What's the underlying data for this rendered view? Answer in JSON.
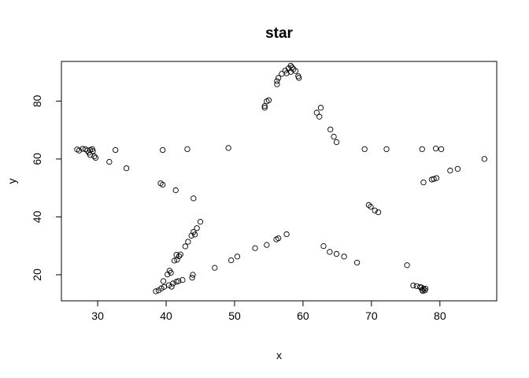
{
  "chart_data": {
    "type": "scatter",
    "title": "star",
    "xlabel": "x",
    "ylabel": "y",
    "xlim": [
      24.7,
      88.3
    ],
    "ylim": [
      11.0,
      93.7
    ],
    "xticks": [
      30,
      40,
      50,
      60,
      70,
      80
    ],
    "yticks": [
      20,
      40,
      60,
      80
    ],
    "grid": false,
    "marker": "open-circle",
    "colors": {
      "points": "#000000",
      "frame": "#000000",
      "background": "#ffffff"
    },
    "points": [
      [
        58.2,
        92.2
      ],
      [
        58.4,
        91.6
      ],
      [
        57.9,
        91.3
      ],
      [
        58.6,
        91.0
      ],
      [
        57.4,
        90.5
      ],
      [
        58.9,
        90.4
      ],
      [
        56.9,
        89.4
      ],
      [
        58.2,
        90.1
      ],
      [
        57.6,
        89.6
      ],
      [
        59.3,
        88.6
      ],
      [
        59.4,
        88.0
      ],
      [
        56.4,
        88.0
      ],
      [
        56.2,
        86.9
      ],
      [
        56.2,
        85.8
      ],
      [
        55.0,
        80.3
      ],
      [
        54.7,
        79.9
      ],
      [
        54.4,
        78.3
      ],
      [
        54.4,
        77.7
      ],
      [
        62.6,
        77.7
      ],
      [
        62.0,
        76.0
      ],
      [
        62.4,
        74.6
      ],
      [
        64.0,
        70.2
      ],
      [
        64.5,
        67.7
      ],
      [
        64.9,
        65.8
      ],
      [
        27.0,
        63.3
      ],
      [
        27.3,
        62.9
      ],
      [
        27.8,
        63.5
      ],
      [
        28.2,
        63.4
      ],
      [
        28.5,
        62.9
      ],
      [
        28.9,
        63.1
      ],
      [
        29.2,
        63.4
      ],
      [
        29.3,
        62.7
      ],
      [
        28.7,
        62.2
      ],
      [
        28.9,
        61.4
      ],
      [
        29.5,
        60.9
      ],
      [
        29.7,
        60.4
      ],
      [
        31.7,
        59.0
      ],
      [
        32.6,
        63.1
      ],
      [
        34.2,
        56.8
      ],
      [
        39.5,
        63.1
      ],
      [
        43.1,
        63.4
      ],
      [
        49.1,
        63.8
      ],
      [
        69.0,
        63.4
      ],
      [
        72.2,
        63.4
      ],
      [
        77.4,
        63.4
      ],
      [
        79.4,
        63.6
      ],
      [
        80.2,
        63.4
      ],
      [
        86.5,
        60.0
      ],
      [
        82.6,
        56.6
      ],
      [
        81.5,
        56.0
      ],
      [
        79.5,
        53.4
      ],
      [
        79.1,
        53.1
      ],
      [
        78.8,
        52.9
      ],
      [
        77.6,
        51.9
      ],
      [
        39.2,
        51.6
      ],
      [
        39.5,
        51.1
      ],
      [
        41.4,
        49.2
      ],
      [
        44.0,
        46.4
      ],
      [
        69.6,
        44.1
      ],
      [
        69.9,
        43.5
      ],
      [
        70.5,
        42.2
      ],
      [
        71.0,
        41.6
      ],
      [
        45.0,
        38.3
      ],
      [
        44.5,
        36.1
      ],
      [
        44.0,
        34.8
      ],
      [
        44.2,
        33.9
      ],
      [
        43.7,
        33.5
      ],
      [
        43.2,
        31.4
      ],
      [
        42.8,
        29.8
      ],
      [
        42.1,
        27.0
      ],
      [
        41.9,
        26.4
      ],
      [
        41.5,
        26.9
      ],
      [
        41.6,
        25.2
      ],
      [
        41.2,
        24.9
      ],
      [
        40.5,
        21.4
      ],
      [
        40.7,
        20.7
      ],
      [
        40.2,
        20.1
      ],
      [
        57.6,
        34.0
      ],
      [
        56.4,
        32.6
      ],
      [
        56.1,
        32.2
      ],
      [
        54.7,
        30.3
      ],
      [
        53.0,
        29.2
      ],
      [
        50.4,
        26.3
      ],
      [
        49.5,
        25.0
      ],
      [
        47.1,
        22.4
      ],
      [
        63.0,
        29.9
      ],
      [
        63.9,
        27.9
      ],
      [
        64.9,
        27.2
      ],
      [
        66.0,
        26.3
      ],
      [
        67.9,
        24.2
      ],
      [
        75.2,
        23.3
      ],
      [
        43.9,
        20.0
      ],
      [
        43.8,
        19.0
      ],
      [
        42.4,
        18.2
      ],
      [
        41.8,
        17.8
      ],
      [
        41.5,
        17.6
      ],
      [
        41.0,
        17.0
      ],
      [
        39.6,
        17.8
      ],
      [
        40.4,
        16.4
      ],
      [
        40.8,
        15.9
      ],
      [
        39.7,
        15.8
      ],
      [
        39.3,
        15.3
      ],
      [
        38.9,
        14.6
      ],
      [
        38.5,
        14.3
      ],
      [
        76.1,
        16.3
      ],
      [
        76.6,
        16.1
      ],
      [
        77.1,
        15.8
      ],
      [
        77.3,
        15.6
      ],
      [
        77.6,
        15.2
      ],
      [
        77.4,
        14.8
      ],
      [
        77.9,
        15.2
      ],
      [
        77.8,
        14.6
      ],
      [
        77.5,
        14.4
      ]
    ]
  }
}
